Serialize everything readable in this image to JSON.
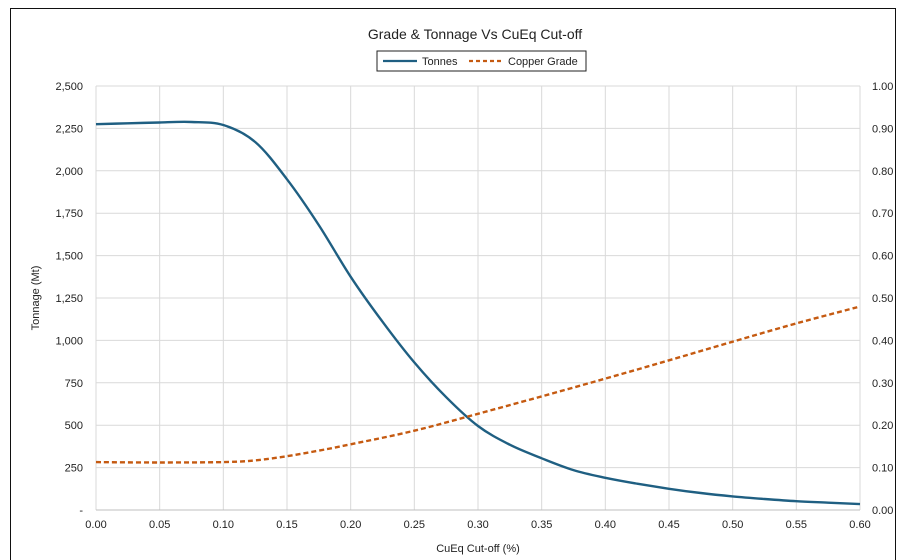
{
  "chart_data": {
    "type": "line",
    "title": "Grade & Tonnage Vs CuEq Cut-off",
    "xlabel": "CuEq Cut-off (%)",
    "ylabel_left": "Tonnage (Mt)",
    "ylabel_right": "",
    "xlim": [
      0.0,
      0.6
    ],
    "ylim_left": [
      0,
      2500
    ],
    "ylim_right": [
      0.0,
      1.0
    ],
    "grid": true,
    "legend_position": "top-center",
    "x_ticks": [
      "0.00",
      "0.05",
      "0.10",
      "0.15",
      "0.20",
      "0.25",
      "0.30",
      "0.35",
      "0.40",
      "0.45",
      "0.50",
      "0.55",
      "0.60"
    ],
    "y_left_ticks": [
      "-",
      "250",
      "500",
      "750",
      "1,000",
      "1,250",
      "1,500",
      "1,750",
      "2,000",
      "2,250",
      "2,500"
    ],
    "y_right_ticks": [
      "0.00",
      "0.10",
      "0.20",
      "0.30",
      "0.40",
      "0.50",
      "0.60",
      "0.70",
      "0.80",
      "0.90",
      "1.00"
    ],
    "series": [
      {
        "name": "Tonnes",
        "axis": "left",
        "color": "#1f5f82",
        "style": "solid",
        "x": [
          0.0,
          0.025,
          0.05,
          0.075,
          0.1,
          0.125,
          0.15,
          0.175,
          0.2,
          0.225,
          0.25,
          0.275,
          0.3,
          0.325,
          0.35,
          0.375,
          0.4,
          0.425,
          0.45,
          0.475,
          0.5,
          0.525,
          0.55,
          0.575,
          0.6
        ],
        "values": [
          2275,
          2280,
          2285,
          2288,
          2270,
          2170,
          1950,
          1680,
          1375,
          1110,
          870,
          665,
          495,
          385,
          305,
          235,
          190,
          155,
          125,
          100,
          80,
          65,
          52,
          43,
          35
        ]
      },
      {
        "name": "Copper Grade",
        "axis": "right",
        "color": "#c55a11",
        "style": "dashed",
        "x": [
          0.0,
          0.05,
          0.1,
          0.125,
          0.15,
          0.175,
          0.2,
          0.25,
          0.3,
          0.35,
          0.4,
          0.45,
          0.5,
          0.55,
          0.6
        ],
        "values": [
          0.113,
          0.112,
          0.113,
          0.117,
          0.127,
          0.14,
          0.155,
          0.187,
          0.227,
          0.268,
          0.31,
          0.353,
          0.397,
          0.44,
          0.48
        ]
      }
    ]
  }
}
